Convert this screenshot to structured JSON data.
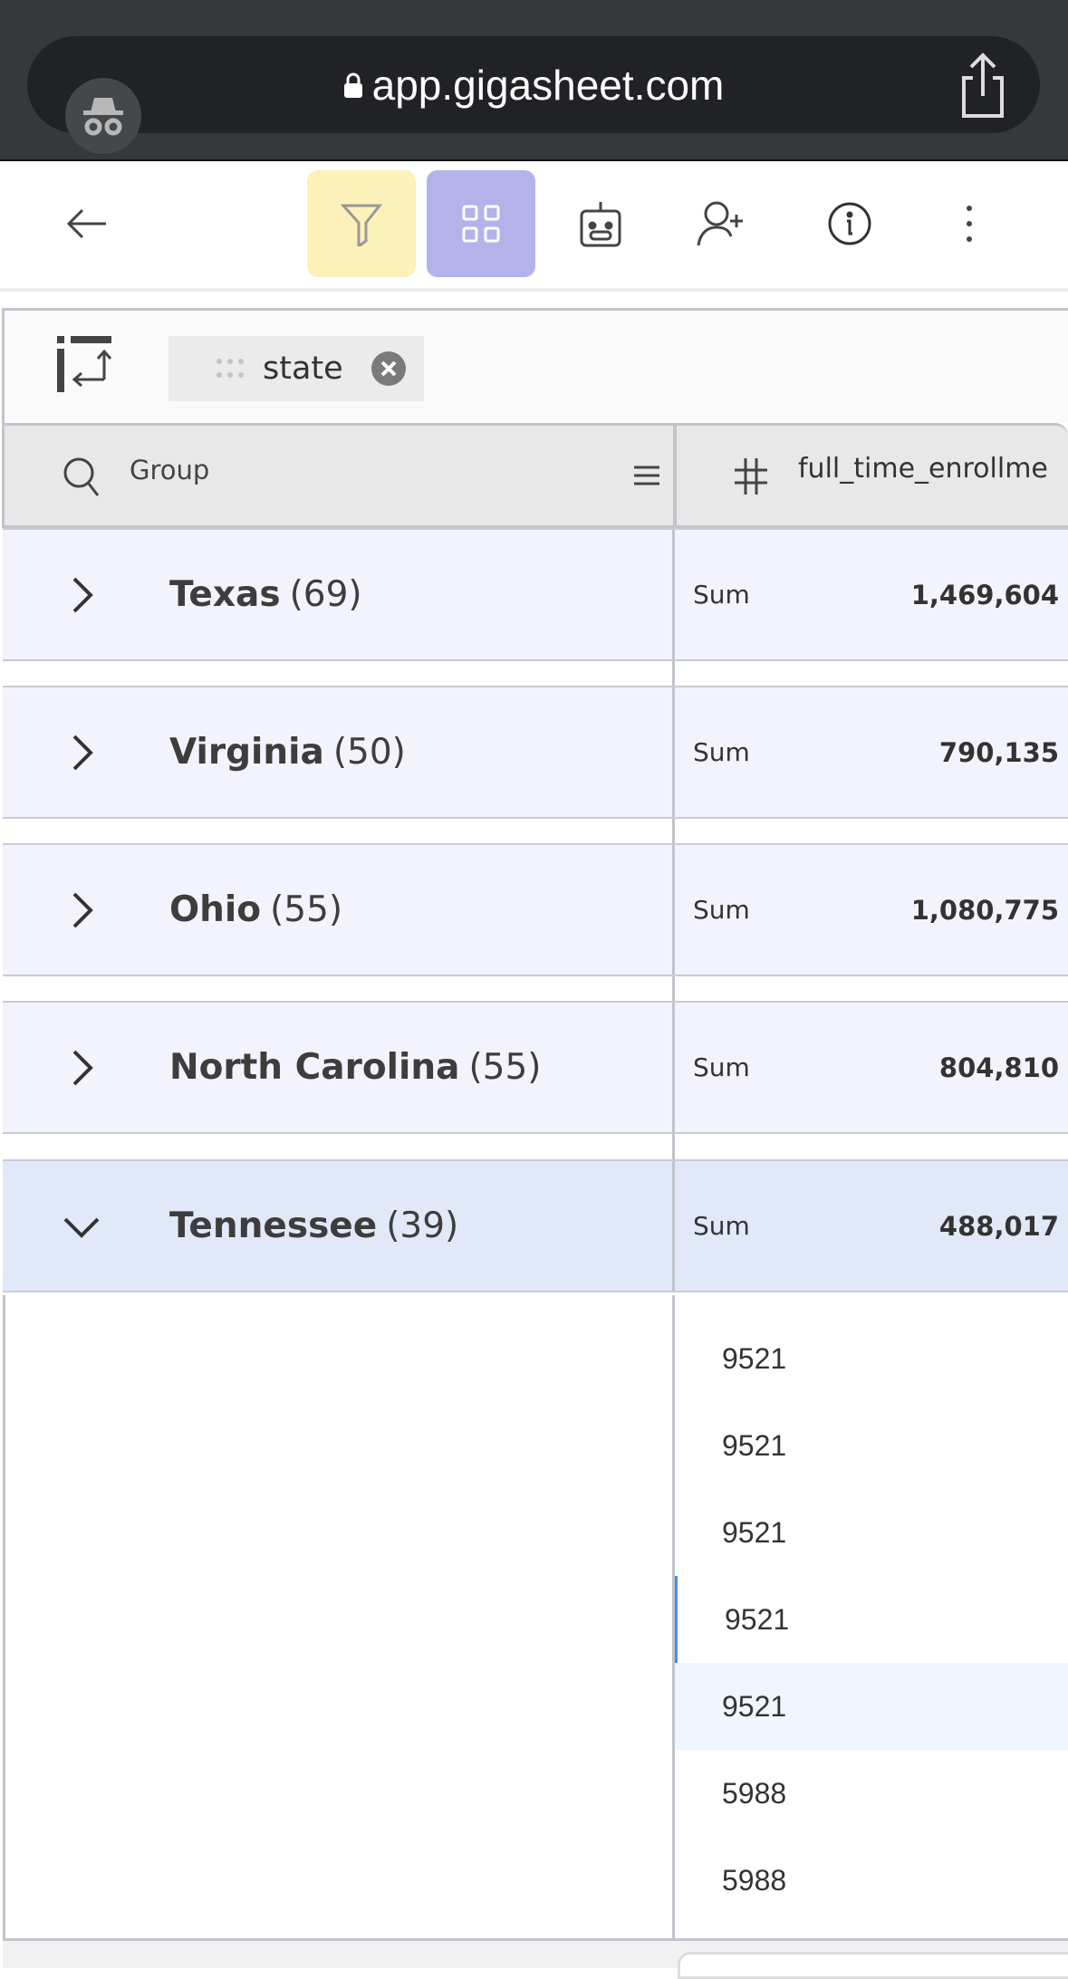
{
  "browser": {
    "url": "app.gigasheet.com",
    "incognito_icon": "incognito-icon",
    "share_icon": "share-icon"
  },
  "toolbar": {
    "buttons": [
      {
        "name": "back",
        "icon": "arrow-left-icon"
      },
      {
        "name": "filter",
        "icon": "funnel-icon",
        "color": "#fcf1b9"
      },
      {
        "name": "group",
        "icon": "grid-icon",
        "color": "#b4b2ea"
      },
      {
        "name": "ai-assistant",
        "icon": "robot-icon"
      },
      {
        "name": "share-user",
        "icon": "user-plus-icon"
      },
      {
        "name": "info",
        "icon": "info-icon"
      },
      {
        "name": "more",
        "icon": "more-vertical-icon"
      }
    ]
  },
  "groupbar": {
    "chip_label": "state"
  },
  "header": {
    "group_label": "Group",
    "column_label": "full_time_enrollme"
  },
  "groups": [
    {
      "name": "Texas",
      "count": "(69)",
      "agg": "Sum",
      "value": "1,469,604",
      "expanded": false
    },
    {
      "name": "Virginia",
      "count": "(50)",
      "agg": "Sum",
      "value": "790,135",
      "expanded": false
    },
    {
      "name": "Ohio",
      "count": "(55)",
      "agg": "Sum",
      "value": "1,080,775",
      "expanded": false
    },
    {
      "name": "North Carolina",
      "count": "(55)",
      "agg": "Sum",
      "value": "804,810",
      "expanded": false
    },
    {
      "name": "Tennessee",
      "count": "(39)",
      "agg": "Sum",
      "value": "488,017",
      "expanded": true
    }
  ],
  "detail_rows": [
    "9521",
    "9521",
    "9521",
    "9521",
    "9521",
    "5988",
    "5988"
  ],
  "colors": {
    "row_bg": "#f3f3fd",
    "expanded_bg": "#e1e9f9",
    "highlight_row": "#eff6fd",
    "selected_bar": "#4a90d9"
  }
}
